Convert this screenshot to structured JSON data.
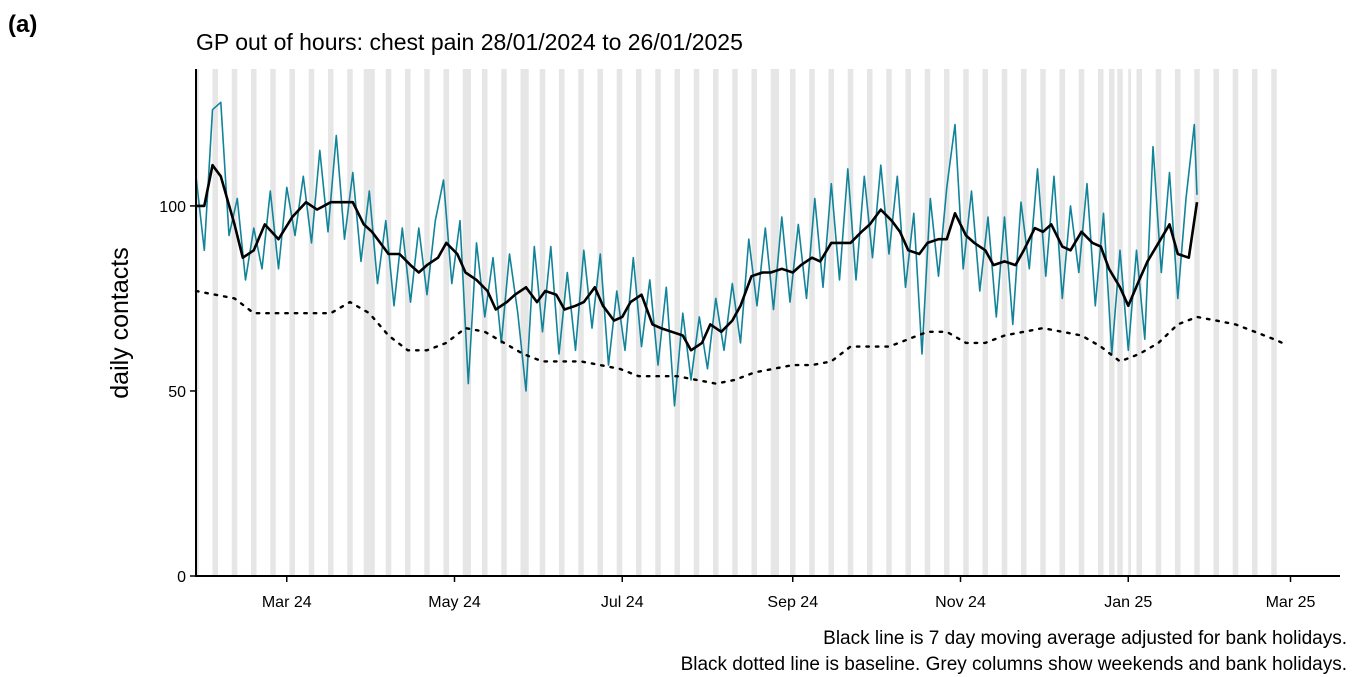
{
  "chart_data": {
    "type": "line",
    "panel_label": "(a)",
    "title": "GP out of hours: chest pain 28/01/2024 to 26/01/2025",
    "ylabel": "daily contacts",
    "notes": [
      "Black line is 7 day moving average adjusted for bank holidays.",
      "Black dotted line is baseline. Grey columns show weekends and bank holidays."
    ],
    "xlim": [
      0,
      416
    ],
    "ylim": [
      0,
      137
    ],
    "xticks": [
      {
        "value": 33,
        "label": "Mar 24"
      },
      {
        "value": 94,
        "label": "May 24"
      },
      {
        "value": 155,
        "label": "Jul 24"
      },
      {
        "value": 217,
        "label": "Sep 24"
      },
      {
        "value": 278,
        "label": "Nov 24"
      },
      {
        "value": 339,
        "label": "Jan 25"
      },
      {
        "value": 398,
        "label": "Mar 25"
      }
    ],
    "yticks": [
      0,
      50,
      100
    ],
    "shade_color": "#e6e6e6",
    "shaded": [
      [
        0,
        1
      ],
      [
        6,
        8
      ],
      [
        13,
        15
      ],
      [
        20,
        22
      ],
      [
        27,
        29
      ],
      [
        34,
        36
      ],
      [
        41,
        43
      ],
      [
        48,
        50
      ],
      [
        55,
        57
      ],
      [
        61,
        65
      ],
      [
        69,
        71
      ],
      [
        76,
        78
      ],
      [
        83,
        85
      ],
      [
        90,
        92
      ],
      [
        97,
        100
      ],
      [
        104,
        106
      ],
      [
        111,
        113
      ],
      [
        118,
        121
      ],
      [
        125,
        127
      ],
      [
        132,
        134
      ],
      [
        139,
        141
      ],
      [
        146,
        148
      ],
      [
        153,
        155
      ],
      [
        160,
        162
      ],
      [
        167,
        169
      ],
      [
        174,
        176
      ],
      [
        181,
        183
      ],
      [
        188,
        190
      ],
      [
        195,
        197
      ],
      [
        202,
        204
      ],
      [
        209,
        212
      ],
      [
        216,
        218
      ],
      [
        223,
        225
      ],
      [
        230,
        232
      ],
      [
        237,
        239
      ],
      [
        244,
        246
      ],
      [
        251,
        253
      ],
      [
        258,
        260
      ],
      [
        265,
        267
      ],
      [
        272,
        274
      ],
      [
        279,
        281
      ],
      [
        286,
        288
      ],
      [
        293,
        295
      ],
      [
        300,
        302
      ],
      [
        307,
        309
      ],
      [
        314,
        316
      ],
      [
        321,
        323
      ],
      [
        328,
        330
      ],
      [
        332,
        334
      ],
      [
        335,
        337
      ],
      [
        339,
        340
      ],
      [
        342,
        344
      ],
      [
        349,
        351
      ],
      [
        356,
        358
      ],
      [
        363,
        365
      ],
      [
        370,
        372
      ],
      [
        377,
        379
      ],
      [
        384,
        386
      ],
      [
        391,
        393
      ]
    ],
    "series": [
      {
        "color": "#12849a",
        "style": "solid",
        "width": 1.6,
        "x": [
          0,
          3,
          6,
          9,
          12,
          15,
          18,
          21,
          24,
          27,
          30,
          33,
          36,
          39,
          42,
          45,
          48,
          51,
          54,
          57,
          60,
          63,
          66,
          69,
          72,
          75,
          78,
          81,
          84,
          87,
          90,
          93,
          96,
          99,
          102,
          105,
          108,
          111,
          114,
          117,
          120,
          123,
          126,
          129,
          132,
          135,
          138,
          141,
          144,
          147,
          150,
          153,
          156,
          159,
          162,
          165,
          168,
          171,
          174,
          177,
          180,
          183,
          186,
          189,
          192,
          195,
          198,
          201,
          204,
          207,
          210,
          213,
          216,
          219,
          222,
          225,
          228,
          231,
          234,
          237,
          240,
          243,
          246,
          249,
          252,
          255,
          258,
          261,
          264,
          267,
          270,
          273,
          276,
          279,
          282,
          285,
          288,
          291,
          294,
          297,
          300,
          303,
          306,
          309,
          312,
          315,
          318,
          321,
          324,
          327,
          330,
          333,
          336,
          339,
          342,
          345,
          348,
          351,
          354,
          357,
          360,
          363,
          364
        ],
        "values": [
          108,
          88,
          126,
          128,
          92,
          102,
          80,
          94,
          83,
          104,
          83,
          105,
          92,
          108,
          90,
          115,
          93,
          119,
          91,
          109,
          85,
          104,
          79,
          96,
          73,
          94,
          74,
          94,
          76,
          96,
          107,
          79,
          96,
          52,
          90,
          70,
          86,
          63,
          87,
          71,
          50,
          89,
          66,
          89,
          60,
          82,
          61,
          88,
          67,
          87,
          57,
          77,
          61,
          86,
          62,
          80,
          57,
          78,
          46,
          71,
          53,
          70,
          56,
          75,
          61,
          79,
          63,
          91,
          73,
          94,
          72,
          97,
          74,
          95,
          75,
          102,
          78,
          106,
          80,
          110,
          80,
          108,
          86,
          111,
          87,
          108,
          78,
          98,
          60,
          102,
          81,
          105,
          122,
          83,
          104,
          77,
          97,
          70,
          97,
          68,
          101,
          83,
          110,
          81,
          108,
          75,
          100,
          82,
          106,
          73,
          98,
          60,
          88,
          61,
          88,
          64,
          116,
          82,
          109,
          75,
          102,
          122,
          103
        ]
      },
      {
        "color": "#000000",
        "style": "solid",
        "width": 2.6,
        "x": [
          0,
          3,
          6,
          9,
          14,
          17,
          21,
          25,
          30,
          35,
          40,
          44,
          49,
          53,
          57,
          61,
          64,
          67,
          70,
          74,
          78,
          81,
          84,
          88,
          91,
          95,
          98,
          102,
          106,
          109,
          113,
          116,
          120,
          124,
          127,
          131,
          134,
          138,
          141,
          145,
          148,
          152,
          155,
          158,
          162,
          166,
          169,
          173,
          177,
          180,
          184,
          187,
          191,
          195,
          198,
          202,
          206,
          209,
          213,
          217,
          220,
          224,
          227,
          231,
          234,
          238,
          242,
          245,
          249,
          253,
          256,
          259,
          263,
          266,
          270,
          273,
          276,
          280,
          283,
          287,
          290,
          294,
          298,
          301,
          305,
          308,
          311,
          315,
          318,
          322,
          326,
          329,
          332,
          336,
          339,
          343,
          346,
          350,
          354,
          357,
          361,
          364
        ],
        "values": [
          100,
          100,
          111,
          108,
          95,
          86,
          88,
          95,
          91,
          97,
          101,
          99,
          101,
          101,
          101,
          95,
          93,
          90,
          87,
          87,
          84,
          82,
          84,
          86,
          90,
          87,
          82,
          80,
          77,
          72,
          74,
          76,
          78,
          74,
          77,
          76,
          72,
          73,
          74,
          78,
          73,
          69,
          70,
          74,
          76,
          68,
          67,
          66,
          65,
          61,
          63,
          68,
          66,
          69,
          73,
          81,
          82,
          82,
          83,
          82,
          84,
          86,
          85,
          90,
          90,
          90,
          93,
          95,
          99,
          96,
          93,
          88,
          87,
          90,
          91,
          91,
          98,
          92,
          90,
          88,
          84,
          85,
          84,
          88,
          94,
          93,
          95,
          89,
          88,
          93,
          90,
          89,
          83,
          78,
          73,
          80,
          85,
          90,
          95,
          87,
          86,
          101
        ]
      },
      {
        "color": "#000000",
        "style": "dotted",
        "width": 2.4,
        "x": [
          0,
          14,
          21,
          35,
          49,
          56,
          63,
          70,
          77,
          84,
          91,
          98,
          105,
          112,
          119,
          126,
          140,
          147,
          154,
          161,
          168,
          175,
          182,
          189,
          196,
          203,
          210,
          217,
          224,
          231,
          238,
          245,
          252,
          259,
          266,
          273,
          280,
          287,
          294,
          301,
          308,
          315,
          322,
          329,
          336,
          343,
          350,
          357,
          364,
          371,
          378,
          385,
          392,
          395
        ],
        "values": [
          77,
          75,
          71,
          71,
          71,
          74,
          71,
          65,
          61,
          61,
          63,
          67,
          66,
          63,
          60,
          58,
          58,
          57,
          56,
          54,
          54,
          54,
          53,
          52,
          53,
          55,
          56,
          57,
          57,
          58,
          62,
          62,
          62,
          64,
          66,
          66,
          63,
          63,
          65,
          66,
          67,
          66,
          65,
          62,
          58,
          60,
          63,
          68,
          70,
          69,
          68,
          66,
          64,
          63
        ]
      }
    ]
  }
}
